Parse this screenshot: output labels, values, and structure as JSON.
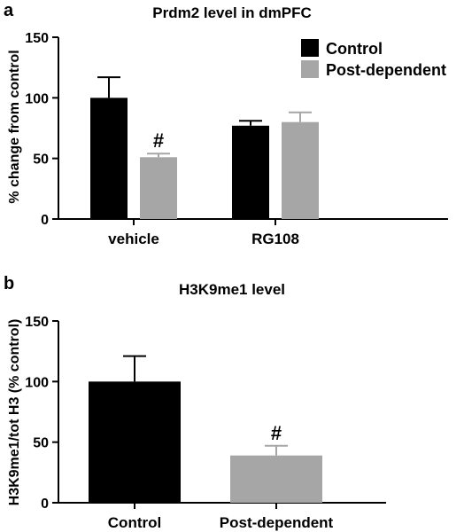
{
  "chart_data": [
    {
      "panel": "a",
      "type": "bar",
      "title": "Prdm2 level in dmPFC",
      "ylabel": "% change from control",
      "xlabel": "",
      "ylim": [
        0,
        150
      ],
      "yticks": [
        0,
        50,
        100,
        150
      ],
      "categories": [
        "vehicle",
        "RG108"
      ],
      "series": [
        {
          "name": "Control",
          "color": "#000000",
          "values": [
            100,
            77
          ],
          "errors": [
            17,
            4
          ]
        },
        {
          "name": "Post-dependent",
          "color": "#a6a6a6",
          "values": [
            51,
            80
          ],
          "errors": [
            3,
            8
          ]
        }
      ],
      "annotations": [
        {
          "text": "#",
          "category": 0,
          "series": 1
        }
      ],
      "legend": "top-right",
      "grid": false
    },
    {
      "panel": "b",
      "type": "bar",
      "title": "H3K9me1 level",
      "ylabel": "H3K9me1/tot H3 (% control)",
      "xlabel": "",
      "ylim": [
        0,
        150
      ],
      "yticks": [
        0,
        50,
        100,
        150
      ],
      "categories": [
        "Control",
        "Post-dependent"
      ],
      "values": [
        100,
        39
      ],
      "errors": [
        21,
        8
      ],
      "colors": [
        "#000000",
        "#a6a6a6"
      ],
      "annotations": [
        {
          "text": "#",
          "category": 1
        }
      ],
      "grid": false
    }
  ]
}
